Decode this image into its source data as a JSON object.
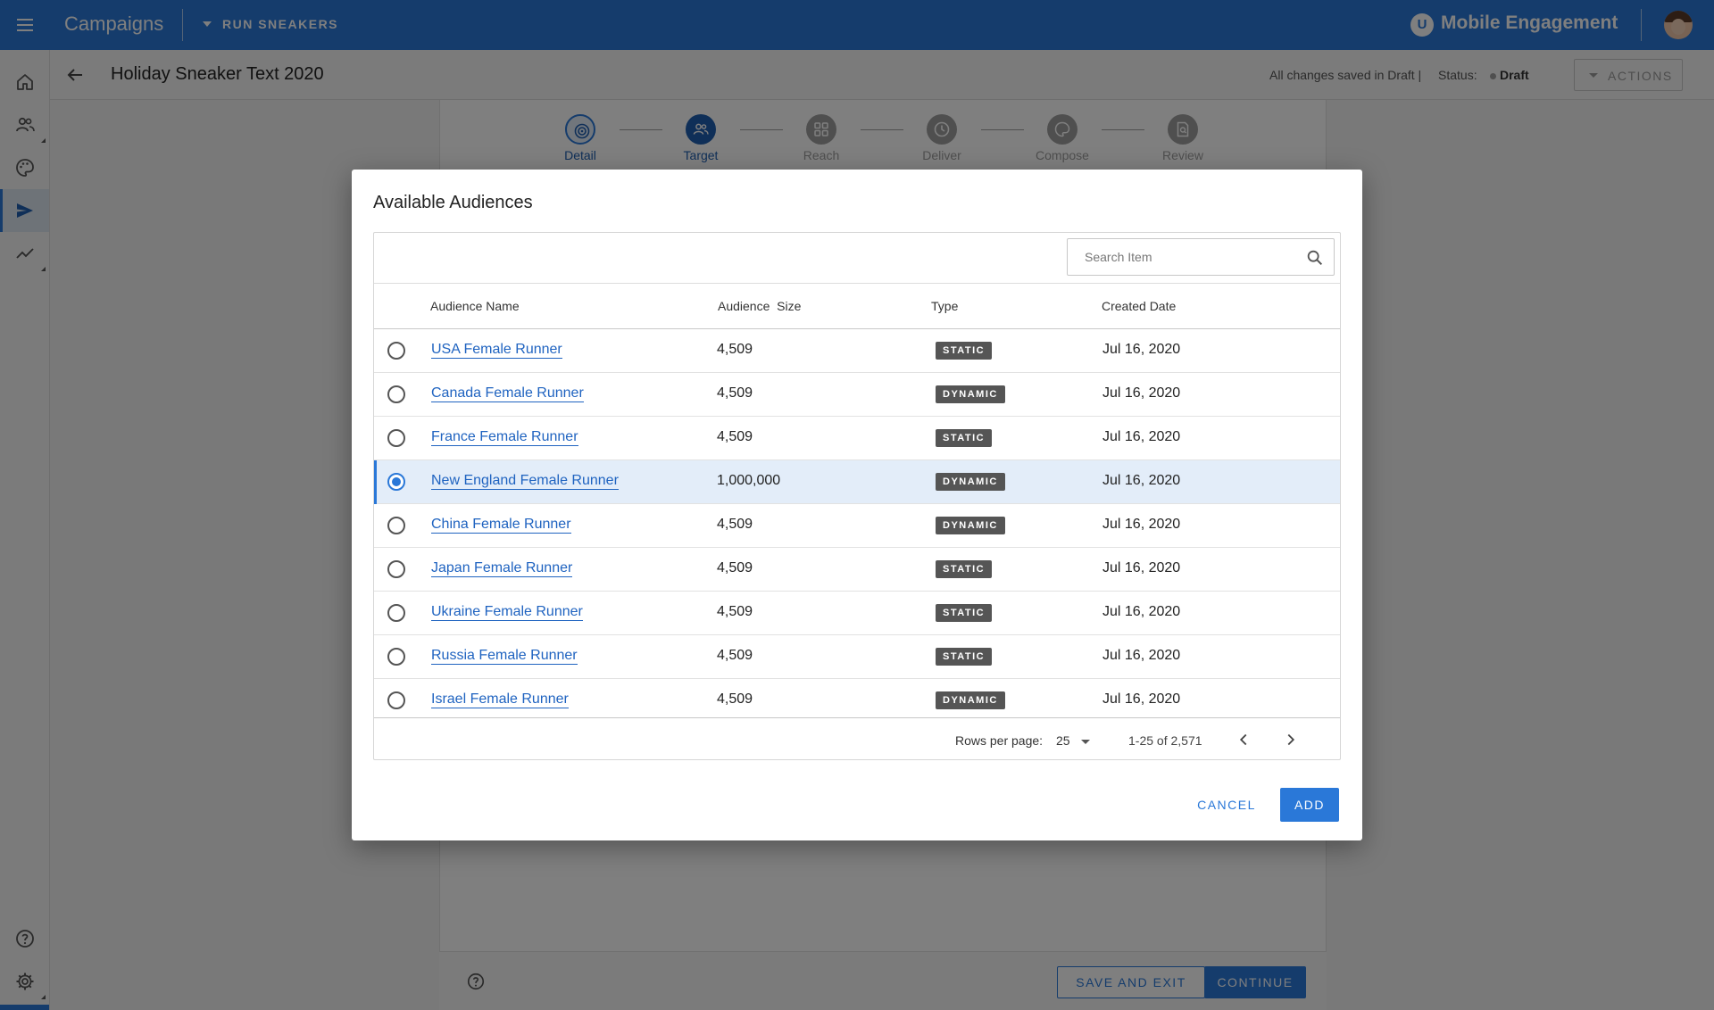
{
  "topbar": {
    "app_title": "Campaigns",
    "brand_selector": "RUN SNEAKERS",
    "logo_letter": "U",
    "product_name": "Mobile Engagement"
  },
  "header": {
    "title": "Holiday Sneaker Text 2020",
    "save_status": "All changes saved in Draft  |",
    "status_label": "Status:",
    "status_value": "Draft",
    "actions_label": "ACTIONS"
  },
  "steps": [
    {
      "label": "Detail",
      "icon": "target-icon",
      "state": "done"
    },
    {
      "label": "Target",
      "icon": "people-icon",
      "state": "current"
    },
    {
      "label": "Reach",
      "icon": "grid-icon",
      "state": "pending"
    },
    {
      "label": "Deliver",
      "icon": "clock-icon",
      "state": "pending"
    },
    {
      "label": "Compose",
      "icon": "palette-icon",
      "state": "pending"
    },
    {
      "label": "Review",
      "icon": "document-search-icon",
      "state": "pending"
    }
  ],
  "footer": {
    "save_exit_label": "SAVE AND EXIT",
    "continue_label": "CONTINUE"
  },
  "modal": {
    "title": "Available Audiences",
    "search_placeholder": "Search Item",
    "columns": [
      "Audience Name",
      "Audience  Size",
      "Type",
      "Created Date"
    ],
    "rows": [
      {
        "name": "USA Female Runner",
        "size": "4,509",
        "type": "STATIC",
        "date": "Jul 16, 2020",
        "selected": false
      },
      {
        "name": "Canada Female Runner",
        "size": "4,509",
        "type": "DYNAMIC",
        "date": "Jul 16, 2020",
        "selected": false
      },
      {
        "name": "France Female Runner",
        "size": "4,509",
        "type": "STATIC",
        "date": "Jul 16, 2020",
        "selected": false
      },
      {
        "name": "New England Female Runner",
        "size": "1,000,000",
        "type": "DYNAMIC",
        "date": "Jul 16, 2020",
        "selected": true
      },
      {
        "name": "China Female Runner",
        "size": "4,509",
        "type": "DYNAMIC",
        "date": "Jul 16, 2020",
        "selected": false
      },
      {
        "name": "Japan Female Runner",
        "size": "4,509",
        "type": "STATIC",
        "date": "Jul 16, 2020",
        "selected": false
      },
      {
        "name": "Ukraine Female Runner",
        "size": "4,509",
        "type": "STATIC",
        "date": "Jul 16, 2020",
        "selected": false
      },
      {
        "name": "Russia Female Runner",
        "size": "4,509",
        "type": "STATIC",
        "date": "Jul 16, 2020",
        "selected": false
      },
      {
        "name": "Israel Female Runner",
        "size": "4,509",
        "type": "DYNAMIC",
        "date": "Jul 16, 2020",
        "selected": false
      }
    ],
    "rows_per_page_label": "Rows per page:",
    "rows_per_page_value": "25",
    "range_label": "1-25 of 2,571",
    "cancel_label": "CANCEL",
    "add_label": "ADD"
  },
  "colors": {
    "primary": "#2a78d8",
    "link": "#1f63c0",
    "selected_row": "#e3edf9",
    "badge": "#555555"
  }
}
